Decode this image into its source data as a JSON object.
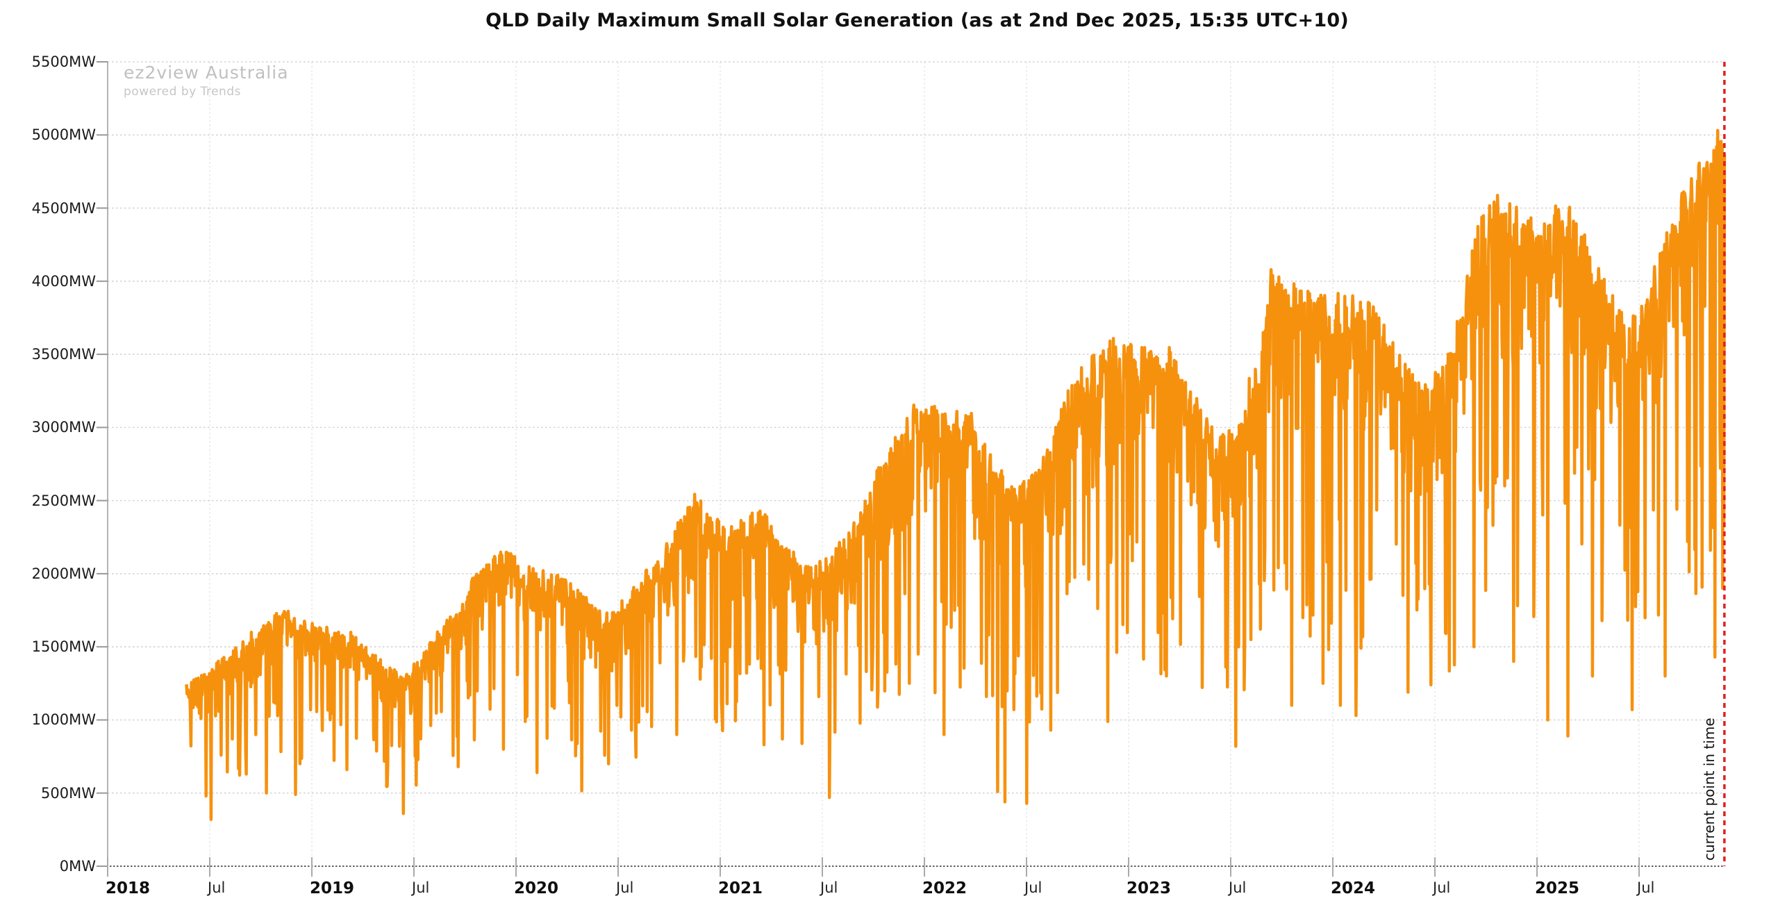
{
  "header": {
    "title": "QLD Daily Maximum Small Solar Generation (as at 2nd Dec 2025, 15:35 UTC+10)"
  },
  "watermark": {
    "line1": "ez2view Australia",
    "line2": "powered by Trends"
  },
  "annotation": {
    "current_time_label": "current point in time",
    "line_color": "#E02020",
    "date": "2025-12-02"
  },
  "chart_data": {
    "type": "line",
    "title": "QLD Daily Maximum Small Solar Generation (as at 2nd Dec 2025, 15:35 UTC+10)",
    "series": [
      {
        "name": "QLD daily maximum small solar generation",
        "color": "#F6910E",
        "unit": "MW"
      }
    ],
    "x_range": [
      "2018-05-22",
      "2025-12-02"
    ],
    "ylim": [
      0,
      5500
    ],
    "ylabel_unit": "MW",
    "grid": {
      "horizontal": "dotted",
      "vertical": "dotted"
    },
    "legend": "none",
    "y_ticks": [
      {
        "value": 0,
        "label": "0MW"
      },
      {
        "value": 500,
        "label": "500MW"
      },
      {
        "value": 1000,
        "label": "1000MW"
      },
      {
        "value": 1500,
        "label": "1500MW"
      },
      {
        "value": 2000,
        "label": "2000MW"
      },
      {
        "value": 2500,
        "label": "2500MW"
      },
      {
        "value": 3000,
        "label": "3000MW"
      },
      {
        "value": 3500,
        "label": "3500MW"
      },
      {
        "value": 4000,
        "label": "4000MW"
      },
      {
        "value": 4500,
        "label": "4500MW"
      },
      {
        "value": 5000,
        "label": "5000MW"
      },
      {
        "value": 5500,
        "label": "5500MW"
      }
    ],
    "x_ticks": [
      {
        "label": "2018",
        "bold": true,
        "month_index": 0
      },
      {
        "label": "Jul",
        "bold": false,
        "month_index": 6
      },
      {
        "label": "2019",
        "bold": true,
        "month_index": 12
      },
      {
        "label": "Jul",
        "bold": false,
        "month_index": 18
      },
      {
        "label": "2020",
        "bold": true,
        "month_index": 24
      },
      {
        "label": "Jul",
        "bold": false,
        "month_index": 30
      },
      {
        "label": "2021",
        "bold": true,
        "month_index": 36
      },
      {
        "label": "Jul",
        "bold": false,
        "month_index": 42
      },
      {
        "label": "2022",
        "bold": true,
        "month_index": 48
      },
      {
        "label": "Jul",
        "bold": false,
        "month_index": 54
      },
      {
        "label": "2023",
        "bold": true,
        "month_index": 60
      },
      {
        "label": "Jul",
        "bold": false,
        "month_index": 66
      },
      {
        "label": "2024",
        "bold": true,
        "month_index": 72
      },
      {
        "label": "Jul",
        "bold": false,
        "month_index": 78
      },
      {
        "label": "2025",
        "bold": true,
        "month_index": 84
      },
      {
        "label": "Jul",
        "bold": false,
        "month_index": 90
      }
    ],
    "monthly_envelope": [
      [
        "2018-05",
        1250,
        900
      ],
      [
        "2018-06",
        1300,
        850
      ],
      [
        "2018-07",
        1400,
        900
      ],
      [
        "2018-08",
        1500,
        1000
      ],
      [
        "2018-09",
        1620,
        1100
      ],
      [
        "2018-10",
        1720,
        1200
      ],
      [
        "2018-11",
        1770,
        1300
      ],
      [
        "2018-12",
        1680,
        1250
      ],
      [
        "2019-01",
        1660,
        1250
      ],
      [
        "2019-02",
        1620,
        1200
      ],
      [
        "2019-03",
        1600,
        1150
      ],
      [
        "2019-04",
        1480,
        1050
      ],
      [
        "2019-05",
        1380,
        950
      ],
      [
        "2019-06",
        1310,
        900
      ],
      [
        "2019-07",
        1450,
        980
      ],
      [
        "2019-08",
        1620,
        1150
      ],
      [
        "2019-09",
        1810,
        1300
      ],
      [
        "2019-10",
        2000,
        1400
      ],
      [
        "2019-11",
        2120,
        1500
      ],
      [
        "2019-12",
        2180,
        1550
      ],
      [
        "2020-01",
        2060,
        1500
      ],
      [
        "2020-02",
        2030,
        1450
      ],
      [
        "2020-03",
        2000,
        1400
      ],
      [
        "2020-04",
        1920,
        1300
      ],
      [
        "2020-05",
        1800,
        1200
      ],
      [
        "2020-06",
        1750,
        1150
      ],
      [
        "2020-07",
        1850,
        1250
      ],
      [
        "2020-08",
        2000,
        1350
      ],
      [
        "2020-09",
        2150,
        1500
      ],
      [
        "2020-10",
        2350,
        1600
      ],
      [
        "2020-11",
        2570,
        1700
      ],
      [
        "2020-12",
        2400,
        1650
      ],
      [
        "2021-01",
        2350,
        1600
      ],
      [
        "2021-02",
        2420,
        1650
      ],
      [
        "2021-03",
        2450,
        1600
      ],
      [
        "2021-04",
        2250,
        1450
      ],
      [
        "2021-05",
        2150,
        1350
      ],
      [
        "2021-06",
        2050,
        1300
      ],
      [
        "2021-07",
        2150,
        1350
      ],
      [
        "2021-08",
        2300,
        1500
      ],
      [
        "2021-09",
        2500,
        1650
      ],
      [
        "2021-10",
        2800,
        1850
      ],
      [
        "2021-11",
        3000,
        2000
      ],
      [
        "2021-12",
        3180,
        2100
      ],
      [
        "2022-01",
        3150,
        2100
      ],
      [
        "2022-02",
        3100,
        2050
      ],
      [
        "2022-03",
        3200,
        2000
      ],
      [
        "2022-04",
        2900,
        1800
      ],
      [
        "2022-05",
        2750,
        1700
      ],
      [
        "2022-06",
        2600,
        1600
      ],
      [
        "2022-07",
        2700,
        1700
      ],
      [
        "2022-08",
        2900,
        1850
      ],
      [
        "2022-09",
        3300,
        2100
      ],
      [
        "2022-10",
        3450,
        2200
      ],
      [
        "2022-11",
        3550,
        2300
      ],
      [
        "2022-12",
        3650,
        2400
      ],
      [
        "2023-01",
        3600,
        2450
      ],
      [
        "2023-02",
        3550,
        2400
      ],
      [
        "2023-03",
        3600,
        2350
      ],
      [
        "2023-04",
        3350,
        2150
      ],
      [
        "2023-05",
        3100,
        2000
      ],
      [
        "2023-06",
        2950,
        1900
      ],
      [
        "2023-07",
        3100,
        2000
      ],
      [
        "2023-08",
        3500,
        2250
      ],
      [
        "2023-09",
        4150,
        2600
      ],
      [
        "2023-10",
        4000,
        2600
      ],
      [
        "2023-11",
        3950,
        2600
      ],
      [
        "2023-12",
        3900,
        2600
      ],
      [
        "2024-01",
        3950,
        2700
      ],
      [
        "2024-02",
        3900,
        2650
      ],
      [
        "2024-03",
        3850,
        2600
      ],
      [
        "2024-04",
        3600,
        2400
      ],
      [
        "2024-05",
        3400,
        2250
      ],
      [
        "2024-06",
        3300,
        2200
      ],
      [
        "2024-07",
        3450,
        2300
      ],
      [
        "2024-08",
        3800,
        2500
      ],
      [
        "2024-09",
        4400,
        2900
      ],
      [
        "2024-10",
        4620,
        3000
      ],
      [
        "2024-11",
        4550,
        3000
      ],
      [
        "2024-12",
        4450,
        3000
      ],
      [
        "2025-01",
        4450,
        3100
      ],
      [
        "2025-02",
        4580,
        3200
      ],
      [
        "2025-03",
        4500,
        3100
      ],
      [
        "2025-04",
        4150,
        2800
      ],
      [
        "2025-05",
        3900,
        2600
      ],
      [
        "2025-06",
        3750,
        2500
      ],
      [
        "2025-07",
        3950,
        2700
      ],
      [
        "2025-08",
        4300,
        2900
      ],
      [
        "2025-09",
        4600,
        3100
      ],
      [
        "2025-10",
        4800,
        3300
      ],
      [
        "2025-11",
        5070,
        3400
      ],
      [
        "2025-12",
        4900,
        3600
      ]
    ],
    "deep_dips": [
      [
        "2018-07-05",
        320
      ],
      [
        "2018-10-12",
        500
      ],
      [
        "2018-12-03",
        490
      ],
      [
        "2019-03-05",
        660
      ],
      [
        "2019-06-14",
        360
      ],
      [
        "2019-09-20",
        680
      ],
      [
        "2019-12-10",
        800
      ],
      [
        "2020-02-08",
        640
      ],
      [
        "2020-04-28",
        515
      ],
      [
        "2020-06-15",
        700
      ],
      [
        "2020-10-15",
        900
      ],
      [
        "2021-03-20",
        830
      ],
      [
        "2021-07-15",
        470
      ],
      [
        "2021-10-10",
        1200
      ],
      [
        "2021-12-05",
        1250
      ],
      [
        "2022-02-05",
        900
      ],
      [
        "2022-05-12",
        510
      ],
      [
        "2022-05-25",
        440
      ],
      [
        "2022-07-03",
        430
      ],
      [
        "2022-08-15",
        930
      ],
      [
        "2022-11-25",
        990
      ],
      [
        "2023-03-10",
        1300
      ],
      [
        "2023-07-12",
        820
      ],
      [
        "2023-10-20",
        1100
      ],
      [
        "2023-12-15",
        1250
      ],
      [
        "2024-01-15",
        1100
      ],
      [
        "2024-02-12",
        1030
      ],
      [
        "2024-05-15",
        1190
      ],
      [
        "2024-06-25",
        1240
      ],
      [
        "2024-09-10",
        1500
      ],
      [
        "2024-11-20",
        1400
      ],
      [
        "2025-01-20",
        1000
      ],
      [
        "2025-02-25",
        890
      ],
      [
        "2025-04-10",
        1300
      ],
      [
        "2025-06-20",
        1070
      ],
      [
        "2025-08-18",
        1300
      ],
      [
        "2025-11-15",
        1430
      ],
      [
        "2025-11-29",
        1900
      ]
    ],
    "record_peak": {
      "date": "2025-11-17",
      "value": 5070
    },
    "last_point": {
      "date": "2025-12-02",
      "value": 4870
    }
  }
}
